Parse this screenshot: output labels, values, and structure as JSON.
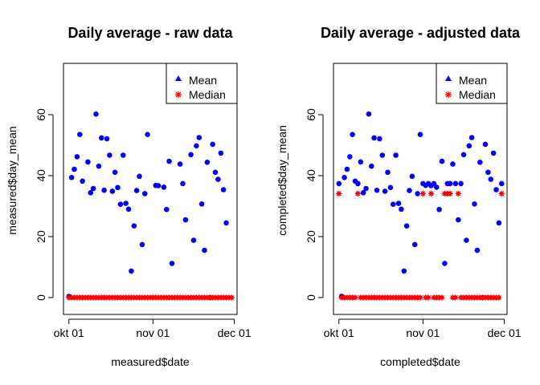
{
  "chart_data": [
    {
      "type": "scatter",
      "title": "Daily average - raw data",
      "xlabel": "measured$date",
      "ylabel": "measured$day_mean",
      "xlim": [
        "2012-09-29",
        "2012-12-02"
      ],
      "ylim": [
        0,
        75
      ],
      "x_ticks": [
        "2012-10-01",
        "2012-11-01",
        "2012-12-01"
      ],
      "x_tick_labels": [
        "okt 01",
        "nov 01",
        "dec 01"
      ],
      "y_ticks": [
        0,
        20,
        40,
        60
      ],
      "legend": {
        "position": "top-right",
        "entries": [
          "Mean",
          "Median"
        ]
      },
      "series": [
        {
          "name": "Mean",
          "color": "#0000FF",
          "marker": "circle",
          "points": [
            [
              "2012-10-01",
              0.4
            ],
            [
              "2012-10-02",
              39.4
            ],
            [
              "2012-10-03",
              42.1
            ],
            [
              "2012-10-04",
              46.2
            ],
            [
              "2012-10-05",
              53.5
            ],
            [
              "2012-10-06",
              38.2
            ],
            [
              "2012-10-08",
              44.5
            ],
            [
              "2012-10-09",
              34.4
            ],
            [
              "2012-10-10",
              35.8
            ],
            [
              "2012-10-11",
              60.2
            ],
            [
              "2012-10-12",
              43.1
            ],
            [
              "2012-10-13",
              52.4
            ],
            [
              "2012-10-14",
              35.2
            ],
            [
              "2012-10-15",
              52.1
            ],
            [
              "2012-10-16",
              46.7
            ],
            [
              "2012-10-17",
              34.9
            ],
            [
              "2012-10-18",
              41.1
            ],
            [
              "2012-10-19",
              36.1
            ],
            [
              "2012-10-20",
              30.6
            ],
            [
              "2012-10-21",
              46.7
            ],
            [
              "2012-10-22",
              30.9
            ],
            [
              "2012-10-23",
              29.0
            ],
            [
              "2012-10-24",
              8.7
            ],
            [
              "2012-10-25",
              23.5
            ],
            [
              "2012-10-26",
              35.1
            ],
            [
              "2012-10-27",
              39.8
            ],
            [
              "2012-10-28",
              17.4
            ],
            [
              "2012-10-29",
              34.1
            ],
            [
              "2012-10-30",
              53.5
            ],
            [
              "2012-11-02",
              36.8
            ],
            [
              "2012-11-03",
              36.7
            ],
            [
              "2012-11-05",
              36.2
            ],
            [
              "2012-11-06",
              28.9
            ],
            [
              "2012-11-07",
              44.7
            ],
            [
              "2012-11-08",
              11.2
            ],
            [
              "2012-11-11",
              43.8
            ],
            [
              "2012-11-12",
              37.4
            ],
            [
              "2012-11-13",
              25.5
            ],
            [
              "2012-11-15",
              46.9
            ],
            [
              "2012-11-16",
              18.8
            ],
            [
              "2012-11-17",
              49.8
            ],
            [
              "2012-11-18",
              52.5
            ],
            [
              "2012-11-19",
              30.7
            ],
            [
              "2012-11-20",
              15.5
            ],
            [
              "2012-11-21",
              44.4
            ],
            [
              "2012-11-22",
              0.0
            ],
            [
              "2012-11-23",
              50.3
            ],
            [
              "2012-11-24",
              41.1
            ],
            [
              "2012-11-25",
              38.8
            ],
            [
              "2012-11-26",
              47.4
            ],
            [
              "2012-11-27",
              35.4
            ],
            [
              "2012-11-28",
              24.5
            ]
          ]
        },
        {
          "name": "Median",
          "color": "#FF0000",
          "marker": "asterisk",
          "points": [
            [
              "2012-10-01",
              0
            ],
            [
              "2012-10-02",
              0
            ],
            [
              "2012-10-03",
              0
            ],
            [
              "2012-10-04",
              0
            ],
            [
              "2012-10-05",
              0
            ],
            [
              "2012-10-06",
              0
            ],
            [
              "2012-10-07",
              0
            ],
            [
              "2012-10-08",
              0
            ],
            [
              "2012-10-09",
              0
            ],
            [
              "2012-10-10",
              0
            ],
            [
              "2012-10-11",
              0
            ],
            [
              "2012-10-12",
              0
            ],
            [
              "2012-10-13",
              0
            ],
            [
              "2012-10-14",
              0
            ],
            [
              "2012-10-15",
              0
            ],
            [
              "2012-10-16",
              0
            ],
            [
              "2012-10-17",
              0
            ],
            [
              "2012-10-18",
              0
            ],
            [
              "2012-10-19",
              0
            ],
            [
              "2012-10-20",
              0
            ],
            [
              "2012-10-21",
              0
            ],
            [
              "2012-10-22",
              0
            ],
            [
              "2012-10-23",
              0
            ],
            [
              "2012-10-24",
              0
            ],
            [
              "2012-10-25",
              0
            ],
            [
              "2012-10-26",
              0
            ],
            [
              "2012-10-27",
              0
            ],
            [
              "2012-10-28",
              0
            ],
            [
              "2012-10-29",
              0
            ],
            [
              "2012-10-30",
              0
            ],
            [
              "2012-10-31",
              0
            ],
            [
              "2012-11-01",
              0
            ],
            [
              "2012-11-02",
              0
            ],
            [
              "2012-11-03",
              0
            ],
            [
              "2012-11-04",
              0
            ],
            [
              "2012-11-05",
              0
            ],
            [
              "2012-11-06",
              0
            ],
            [
              "2012-11-07",
              0
            ],
            [
              "2012-11-08",
              0
            ],
            [
              "2012-11-09",
              0
            ],
            [
              "2012-11-10",
              0
            ],
            [
              "2012-11-11",
              0
            ],
            [
              "2012-11-12",
              0
            ],
            [
              "2012-11-13",
              0
            ],
            [
              "2012-11-14",
              0
            ],
            [
              "2012-11-15",
              0
            ],
            [
              "2012-11-16",
              0
            ],
            [
              "2012-11-17",
              0
            ],
            [
              "2012-11-18",
              0
            ],
            [
              "2012-11-19",
              0
            ],
            [
              "2012-11-20",
              0
            ],
            [
              "2012-11-21",
              0
            ],
            [
              "2012-11-22",
              0
            ],
            [
              "2012-11-23",
              0
            ],
            [
              "2012-11-24",
              0
            ],
            [
              "2012-11-25",
              0
            ],
            [
              "2012-11-26",
              0
            ],
            [
              "2012-11-27",
              0
            ],
            [
              "2012-11-28",
              0
            ],
            [
              "2012-11-29",
              0
            ],
            [
              "2012-11-30",
              0
            ]
          ]
        }
      ]
    },
    {
      "type": "scatter",
      "title": "Daily average - adjusted data",
      "xlabel": "completed$date",
      "ylabel": "completed$day_mean",
      "xlim": [
        "2012-09-29",
        "2012-12-02"
      ],
      "ylim": [
        0,
        75
      ],
      "x_ticks": [
        "2012-10-01",
        "2012-11-01",
        "2012-12-01"
      ],
      "x_tick_labels": [
        "okt 01",
        "nov 01",
        "dec 01"
      ],
      "y_ticks": [
        0,
        20,
        40,
        60
      ],
      "legend": {
        "position": "top-right",
        "entries": [
          "Mean",
          "Median"
        ]
      },
      "series": [
        {
          "name": "Mean",
          "color": "#0000FF",
          "marker": "circle",
          "points": [
            [
              "2012-10-01",
              37.4
            ],
            [
              "2012-10-02",
              0.4
            ],
            [
              "2012-10-03",
              39.4
            ],
            [
              "2012-10-04",
              42.1
            ],
            [
              "2012-10-05",
              46.2
            ],
            [
              "2012-10-06",
              53.5
            ],
            [
              "2012-10-07",
              38.2
            ],
            [
              "2012-10-08",
              37.4
            ],
            [
              "2012-10-09",
              44.5
            ],
            [
              "2012-10-10",
              34.4
            ],
            [
              "2012-10-11",
              35.8
            ],
            [
              "2012-10-12",
              60.2
            ],
            [
              "2012-10-13",
              43.1
            ],
            [
              "2012-10-14",
              52.4
            ],
            [
              "2012-10-15",
              35.2
            ],
            [
              "2012-10-16",
              52.1
            ],
            [
              "2012-10-17",
              46.7
            ],
            [
              "2012-10-18",
              34.9
            ],
            [
              "2012-10-19",
              41.1
            ],
            [
              "2012-10-20",
              36.1
            ],
            [
              "2012-10-21",
              30.6
            ],
            [
              "2012-10-22",
              46.7
            ],
            [
              "2012-10-23",
              30.9
            ],
            [
              "2012-10-24",
              29.0
            ],
            [
              "2012-10-25",
              8.7
            ],
            [
              "2012-10-26",
              23.5
            ],
            [
              "2012-10-27",
              35.1
            ],
            [
              "2012-10-28",
              39.8
            ],
            [
              "2012-10-29",
              17.4
            ],
            [
              "2012-10-30",
              34.1
            ],
            [
              "2012-10-31",
              53.5
            ],
            [
              "2012-11-01",
              37.4
            ],
            [
              "2012-11-02",
              36.8
            ],
            [
              "2012-11-03",
              37.4
            ],
            [
              "2012-11-04",
              36.7
            ],
            [
              "2012-11-05",
              37.4
            ],
            [
              "2012-11-06",
              36.2
            ],
            [
              "2012-11-07",
              28.9
            ],
            [
              "2012-11-08",
              44.7
            ],
            [
              "2012-11-09",
              11.2
            ],
            [
              "2012-11-10",
              37.4
            ],
            [
              "2012-11-11",
              37.4
            ],
            [
              "2012-11-12",
              43.8
            ],
            [
              "2012-11-13",
              37.4
            ],
            [
              "2012-11-14",
              25.5
            ],
            [
              "2012-11-15",
              37.4
            ],
            [
              "2012-11-16",
              46.9
            ],
            [
              "2012-11-17",
              18.8
            ],
            [
              "2012-11-18",
              49.8
            ],
            [
              "2012-11-19",
              52.5
            ],
            [
              "2012-11-20",
              30.7
            ],
            [
              "2012-11-21",
              15.5
            ],
            [
              "2012-11-22",
              44.4
            ],
            [
              "2012-11-23",
              0.0
            ],
            [
              "2012-11-24",
              50.3
            ],
            [
              "2012-11-25",
              41.1
            ],
            [
              "2012-11-26",
              38.8
            ],
            [
              "2012-11-27",
              47.4
            ],
            [
              "2012-11-28",
              35.4
            ],
            [
              "2012-11-29",
              24.5
            ],
            [
              "2012-11-30",
              37.4
            ]
          ]
        },
        {
          "name": "Median",
          "color": "#FF0000",
          "marker": "asterisk",
          "points": [
            [
              "2012-10-01",
              34.1
            ],
            [
              "2012-10-02",
              0
            ],
            [
              "2012-10-03",
              0
            ],
            [
              "2012-10-04",
              0
            ],
            [
              "2012-10-05",
              0
            ],
            [
              "2012-10-06",
              0
            ],
            [
              "2012-10-07",
              0
            ],
            [
              "2012-10-08",
              34.1
            ],
            [
              "2012-10-09",
              0
            ],
            [
              "2012-10-10",
              0
            ],
            [
              "2012-10-11",
              0
            ],
            [
              "2012-10-12",
              0
            ],
            [
              "2012-10-13",
              0
            ],
            [
              "2012-10-14",
              0
            ],
            [
              "2012-10-15",
              0
            ],
            [
              "2012-10-16",
              0
            ],
            [
              "2012-10-17",
              0
            ],
            [
              "2012-10-18",
              0
            ],
            [
              "2012-10-19",
              0
            ],
            [
              "2012-10-20",
              0
            ],
            [
              "2012-10-21",
              0
            ],
            [
              "2012-10-22",
              0
            ],
            [
              "2012-10-23",
              0
            ],
            [
              "2012-10-24",
              0
            ],
            [
              "2012-10-25",
              0
            ],
            [
              "2012-10-26",
              0
            ],
            [
              "2012-10-27",
              0
            ],
            [
              "2012-10-28",
              0
            ],
            [
              "2012-10-29",
              0
            ],
            [
              "2012-10-30",
              0
            ],
            [
              "2012-10-31",
              0
            ],
            [
              "2012-11-01",
              34.1
            ],
            [
              "2012-11-02",
              0
            ],
            [
              "2012-11-03",
              0
            ],
            [
              "2012-11-04",
              34.1
            ],
            [
              "2012-11-05",
              0
            ],
            [
              "2012-11-06",
              0
            ],
            [
              "2012-11-07",
              0
            ],
            [
              "2012-11-08",
              0
            ],
            [
              "2012-11-09",
              34.1
            ],
            [
              "2012-11-10",
              34.1
            ],
            [
              "2012-11-11",
              34.1
            ],
            [
              "2012-11-12",
              0
            ],
            [
              "2012-11-13",
              0
            ],
            [
              "2012-11-14",
              34.1
            ],
            [
              "2012-11-15",
              0
            ],
            [
              "2012-11-16",
              0
            ],
            [
              "2012-11-17",
              0
            ],
            [
              "2012-11-18",
              0
            ],
            [
              "2012-11-19",
              0
            ],
            [
              "2012-11-20",
              0
            ],
            [
              "2012-11-21",
              0
            ],
            [
              "2012-11-22",
              0
            ],
            [
              "2012-11-23",
              0
            ],
            [
              "2012-11-24",
              0
            ],
            [
              "2012-11-25",
              0
            ],
            [
              "2012-11-26",
              0
            ],
            [
              "2012-11-27",
              0
            ],
            [
              "2012-11-28",
              0
            ],
            [
              "2012-11-29",
              0
            ],
            [
              "2012-11-30",
              34.1
            ]
          ]
        }
      ]
    }
  ]
}
